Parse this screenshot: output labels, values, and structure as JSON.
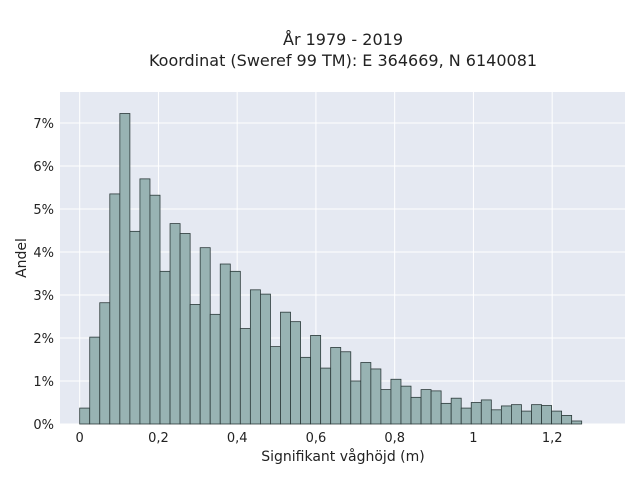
{
  "chart_data": {
    "type": "bar",
    "title_lines": [
      "År 1979 - 2019",
      "Koordinat (Sweref 99 TM): E 364669, N 6140081"
    ],
    "xlabel": "Signifikant våghöjd (m)",
    "ylabel": "Andel",
    "xlim": [
      -0.05,
      1.385
    ],
    "ylim": [
      0,
      0.0772
    ],
    "x_ticks": [
      0,
      0.2,
      0.4,
      0.6,
      0.8,
      1,
      1.2
    ],
    "x_tick_labels": [
      "0",
      "0,2",
      "0,4",
      "0,6",
      "0,8",
      "1",
      "1,2"
    ],
    "y_ticks": [
      0,
      0.01,
      0.02,
      0.03,
      0.04,
      0.05,
      0.06,
      0.07
    ],
    "y_tick_labels": [
      "0%",
      "1%",
      "2%",
      "3%",
      "4%",
      "5%",
      "6%",
      "7%"
    ],
    "grid": true,
    "bin_width": 0.0255,
    "bin_start": 0.0,
    "values": [
      0.0037,
      0.0202,
      0.0282,
      0.0535,
      0.0722,
      0.0448,
      0.057,
      0.0532,
      0.0355,
      0.0466,
      0.0443,
      0.0278,
      0.041,
      0.0255,
      0.0372,
      0.0355,
      0.0222,
      0.0312,
      0.0302,
      0.018,
      0.026,
      0.0238,
      0.0155,
      0.0206,
      0.013,
      0.0178,
      0.0168,
      0.01,
      0.0143,
      0.0128,
      0.008,
      0.0104,
      0.0088,
      0.0062,
      0.008,
      0.0077,
      0.0048,
      0.006,
      0.0037,
      0.005,
      0.0056,
      0.0033,
      0.0042,
      0.0045,
      0.003,
      0.0045,
      0.0043,
      0.003,
      0.002,
      0.0007
    ],
    "colors": {
      "plot_bg": "#e5e9f2",
      "bar_fill": "#98b3b3",
      "bar_edge": "#2c3a3a",
      "grid": "#ffffff"
    }
  }
}
